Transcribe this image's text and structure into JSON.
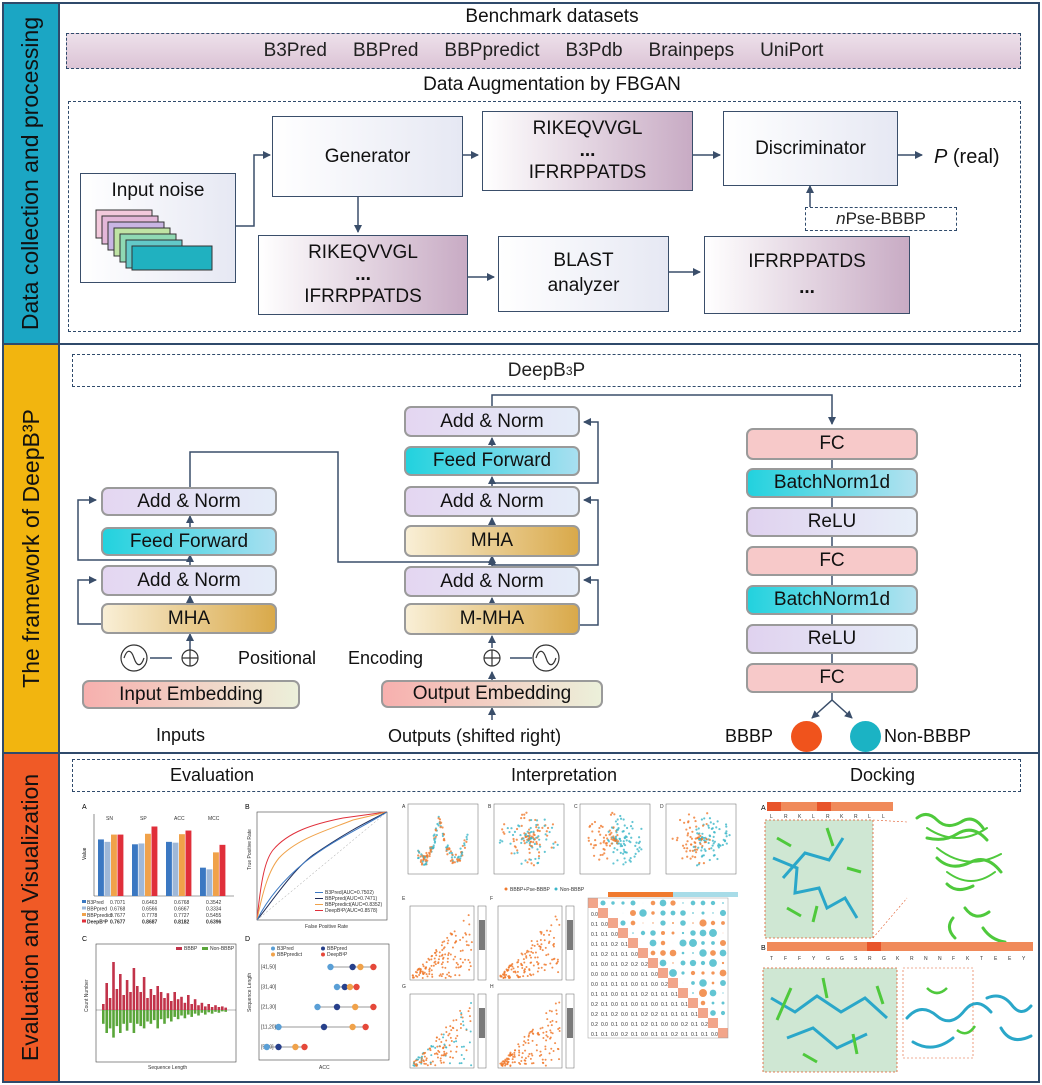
{
  "sidebar": {
    "section1": "Data collection and processing",
    "section2": "The framework of DeepB³P",
    "section3": "Evaluation and Visualization"
  },
  "section1": {
    "title": "Benchmark datasets",
    "datasets": [
      "B3Pred",
      "BBPred",
      "BBPpredict",
      "B3Pdb",
      "Brainpeps",
      "UniPort"
    ],
    "augmentation_title": "Data Augmentation by FBGAN",
    "input_noise": "Input noise",
    "generator": "Generator",
    "seq_top_1": "RIKEQVVGL",
    "seq_top_2": "...",
    "seq_top_3": "IFRRPPATDS",
    "discriminator": "Discriminator",
    "p_real_italic": "P",
    "p_real_rest": " (real)",
    "pse_italic": "n",
    "pse_rest": " Pse-BBBP",
    "seq_bot_1": "RIKEQVVGL",
    "seq_bot_2": "...",
    "seq_bot_3": "IFRRPPATDS",
    "blast_1": "BLAST",
    "blast_2": "analyzer",
    "out_1": "IFRRPPATDS",
    "out_2": "..."
  },
  "section2": {
    "title_main": "DeepB",
    "title_sup": "3",
    "title_end": "P",
    "encoder": {
      "add_norm_top": "Add & Norm",
      "feed_forward": "Feed Forward",
      "add_norm_bottom": "Add & Norm",
      "mha": "MHA",
      "embedding": "Input Embedding",
      "inputs": "Inputs"
    },
    "decoder": {
      "add_norm_1": "Add & Norm",
      "feed_forward": "Feed Forward",
      "add_norm_2": "Add & Norm",
      "mha": "MHA",
      "add_norm_3": "Add & Norm",
      "m_mha": "M-MHA",
      "embedding": "Output Embedding",
      "outputs": "Outputs (shifted right)"
    },
    "positional": "Positional",
    "encoding": "Encoding",
    "classifier": [
      "FC",
      "BatchNorm1d",
      "ReLU",
      "FC",
      "BatchNorm1d",
      "ReLU",
      "FC"
    ],
    "bbbp": "BBBP",
    "non_bbbp": "Non-BBBP",
    "colors": {
      "bbbp": "#f0531c",
      "non_bbbp": "#1bb3c4"
    }
  },
  "section3": {
    "evaluation": "Evaluation",
    "interpretation": "Interpretation",
    "docking": "Docking",
    "panelA": {
      "label": "A",
      "ylabel": "Value",
      "groups": [
        "SN",
        "SP",
        "ACC",
        "MCC"
      ],
      "series": [
        {
          "name": "B3Pred",
          "color": "#3b78c2",
          "values": [
            0.7071,
            0.6463,
            0.6768,
            0.3542
          ]
        },
        {
          "name": "BBPpred",
          "color": "#9fb8d8",
          "values": [
            0.6768,
            0.6566,
            0.6667,
            0.3334
          ]
        },
        {
          "name": "BBPpredict",
          "color": "#f0a24a",
          "values": [
            0.7677,
            0.7778,
            0.7727,
            0.5455
          ]
        },
        {
          "name": "DeepB³P",
          "color": "#e02f3a",
          "values": [
            0.7677,
            0.8687,
            0.8182,
            0.6396
          ]
        }
      ],
      "table_rows": [
        [
          "B3Pred",
          "0.7071",
          "0.6463",
          "0.6768",
          "0.3542"
        ],
        [
          "BBPpred",
          "0.6768",
          "0.6566",
          "0.6667",
          "0.3334"
        ],
        [
          "BBPpredict",
          "0.7677",
          "0.7778",
          "0.7727",
          "0.5455"
        ],
        [
          "DeepB³P",
          "0.7677",
          "0.8687",
          "0.8182",
          "0.6396"
        ]
      ]
    },
    "panelB": {
      "label": "B",
      "xlabel": "False Positive Rate",
      "ylabel": "True Positive Rate",
      "legend": [
        "B3Pred(AUC=0.7502)",
        "BBPpred(AUC=0.7471)",
        "BBPpredict(AUC=0.8352)",
        "DeepB³P(AUC=0.8578)"
      ],
      "colors": [
        "#3b78c2",
        "#1f2d5a",
        "#f0a24a",
        "#e02f3a"
      ]
    },
    "panelC": {
      "label": "C",
      "xlabel": "Sequence Length",
      "ylabel": "Count Number",
      "legend": [
        "BBBP",
        "Non-BBBP"
      ],
      "colors": [
        "#c2334a",
        "#5aa63a"
      ]
    },
    "panelD": {
      "label": "D",
      "xlabel": "ACC",
      "ylabel": "Sequence Length",
      "legend": [
        "B3Pred",
        "BBPpred",
        "BBPpredict",
        "DeepB³P"
      ],
      "rows": [
        "[41,50]",
        "[31,40]",
        "[21,30]",
        "[11,20]",
        "[5,10]"
      ],
      "colors": [
        "#5a9fd6",
        "#27408b",
        "#f0a24a",
        "#e5483a"
      ]
    },
    "interp": {
      "panel_labels": [
        "A",
        "B",
        "C",
        "D",
        "E",
        "F",
        "G",
        "H",
        "I"
      ],
      "legend_tsne": [
        "BBBP+Pse-BBBP",
        "Non-BBBP"
      ],
      "colors": {
        "orange": "#f07a2e",
        "teal": "#3bb6c8"
      }
    },
    "docking_data": {
      "panel_a_label": "A",
      "panel_b_label": "B",
      "seq_a": [
        "L",
        "R",
        "K",
        "L",
        "R",
        "K",
        "R",
        "L",
        "L"
      ],
      "seq_b": [
        "T",
        "F",
        "F",
        "Y",
        "G",
        "G",
        "S",
        "R",
        "G",
        "K",
        "R",
        "N",
        "N",
        "F",
        "K",
        "T",
        "E",
        "E",
        "Y"
      ],
      "colors": {
        "protein": "#4fc93c",
        "ligand": "#2aa7c9",
        "frame": "#e05a2a"
      }
    }
  }
}
